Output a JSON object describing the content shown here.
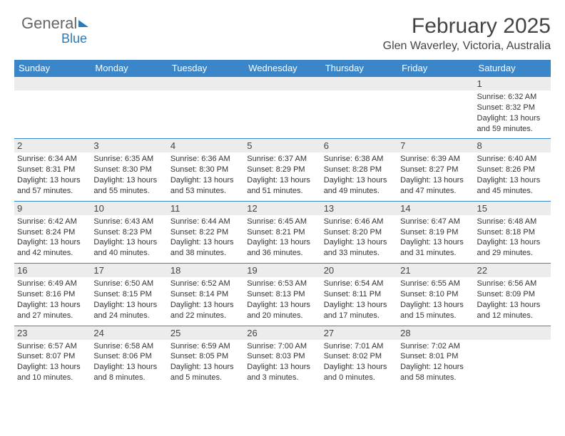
{
  "brand": {
    "part1": "General",
    "part2": "Blue"
  },
  "title": "February 2025",
  "location": "Glen Waverley, Victoria, Australia",
  "colors": {
    "accent": "#3a86c8",
    "headerText": "#ffffff",
    "numBg": "#ececec"
  },
  "dayHeaders": [
    "Sunday",
    "Monday",
    "Tuesday",
    "Wednesday",
    "Thursday",
    "Friday",
    "Saturday"
  ],
  "weeks": [
    [
      null,
      null,
      null,
      null,
      null,
      null,
      {
        "n": "1",
        "sunrise": "Sunrise: 6:32 AM",
        "sunset": "Sunset: 8:32 PM",
        "daylight": "Daylight: 13 hours and 59 minutes."
      }
    ],
    [
      {
        "n": "2",
        "sunrise": "Sunrise: 6:34 AM",
        "sunset": "Sunset: 8:31 PM",
        "daylight": "Daylight: 13 hours and 57 minutes."
      },
      {
        "n": "3",
        "sunrise": "Sunrise: 6:35 AM",
        "sunset": "Sunset: 8:30 PM",
        "daylight": "Daylight: 13 hours and 55 minutes."
      },
      {
        "n": "4",
        "sunrise": "Sunrise: 6:36 AM",
        "sunset": "Sunset: 8:30 PM",
        "daylight": "Daylight: 13 hours and 53 minutes."
      },
      {
        "n": "5",
        "sunrise": "Sunrise: 6:37 AM",
        "sunset": "Sunset: 8:29 PM",
        "daylight": "Daylight: 13 hours and 51 minutes."
      },
      {
        "n": "6",
        "sunrise": "Sunrise: 6:38 AM",
        "sunset": "Sunset: 8:28 PM",
        "daylight": "Daylight: 13 hours and 49 minutes."
      },
      {
        "n": "7",
        "sunrise": "Sunrise: 6:39 AM",
        "sunset": "Sunset: 8:27 PM",
        "daylight": "Daylight: 13 hours and 47 minutes."
      },
      {
        "n": "8",
        "sunrise": "Sunrise: 6:40 AM",
        "sunset": "Sunset: 8:26 PM",
        "daylight": "Daylight: 13 hours and 45 minutes."
      }
    ],
    [
      {
        "n": "9",
        "sunrise": "Sunrise: 6:42 AM",
        "sunset": "Sunset: 8:24 PM",
        "daylight": "Daylight: 13 hours and 42 minutes."
      },
      {
        "n": "10",
        "sunrise": "Sunrise: 6:43 AM",
        "sunset": "Sunset: 8:23 PM",
        "daylight": "Daylight: 13 hours and 40 minutes."
      },
      {
        "n": "11",
        "sunrise": "Sunrise: 6:44 AM",
        "sunset": "Sunset: 8:22 PM",
        "daylight": "Daylight: 13 hours and 38 minutes."
      },
      {
        "n": "12",
        "sunrise": "Sunrise: 6:45 AM",
        "sunset": "Sunset: 8:21 PM",
        "daylight": "Daylight: 13 hours and 36 minutes."
      },
      {
        "n": "13",
        "sunrise": "Sunrise: 6:46 AM",
        "sunset": "Sunset: 8:20 PM",
        "daylight": "Daylight: 13 hours and 33 minutes."
      },
      {
        "n": "14",
        "sunrise": "Sunrise: 6:47 AM",
        "sunset": "Sunset: 8:19 PM",
        "daylight": "Daylight: 13 hours and 31 minutes."
      },
      {
        "n": "15",
        "sunrise": "Sunrise: 6:48 AM",
        "sunset": "Sunset: 8:18 PM",
        "daylight": "Daylight: 13 hours and 29 minutes."
      }
    ],
    [
      {
        "n": "16",
        "sunrise": "Sunrise: 6:49 AM",
        "sunset": "Sunset: 8:16 PM",
        "daylight": "Daylight: 13 hours and 27 minutes."
      },
      {
        "n": "17",
        "sunrise": "Sunrise: 6:50 AM",
        "sunset": "Sunset: 8:15 PM",
        "daylight": "Daylight: 13 hours and 24 minutes."
      },
      {
        "n": "18",
        "sunrise": "Sunrise: 6:52 AM",
        "sunset": "Sunset: 8:14 PM",
        "daylight": "Daylight: 13 hours and 22 minutes."
      },
      {
        "n": "19",
        "sunrise": "Sunrise: 6:53 AM",
        "sunset": "Sunset: 8:13 PM",
        "daylight": "Daylight: 13 hours and 20 minutes."
      },
      {
        "n": "20",
        "sunrise": "Sunrise: 6:54 AM",
        "sunset": "Sunset: 8:11 PM",
        "daylight": "Daylight: 13 hours and 17 minutes."
      },
      {
        "n": "21",
        "sunrise": "Sunrise: 6:55 AM",
        "sunset": "Sunset: 8:10 PM",
        "daylight": "Daylight: 13 hours and 15 minutes."
      },
      {
        "n": "22",
        "sunrise": "Sunrise: 6:56 AM",
        "sunset": "Sunset: 8:09 PM",
        "daylight": "Daylight: 13 hours and 12 minutes."
      }
    ],
    [
      {
        "n": "23",
        "sunrise": "Sunrise: 6:57 AM",
        "sunset": "Sunset: 8:07 PM",
        "daylight": "Daylight: 13 hours and 10 minutes."
      },
      {
        "n": "24",
        "sunrise": "Sunrise: 6:58 AM",
        "sunset": "Sunset: 8:06 PM",
        "daylight": "Daylight: 13 hours and 8 minutes."
      },
      {
        "n": "25",
        "sunrise": "Sunrise: 6:59 AM",
        "sunset": "Sunset: 8:05 PM",
        "daylight": "Daylight: 13 hours and 5 minutes."
      },
      {
        "n": "26",
        "sunrise": "Sunrise: 7:00 AM",
        "sunset": "Sunset: 8:03 PM",
        "daylight": "Daylight: 13 hours and 3 minutes."
      },
      {
        "n": "27",
        "sunrise": "Sunrise: 7:01 AM",
        "sunset": "Sunset: 8:02 PM",
        "daylight": "Daylight: 13 hours and 0 minutes."
      },
      {
        "n": "28",
        "sunrise": "Sunrise: 7:02 AM",
        "sunset": "Sunset: 8:01 PM",
        "daylight": "Daylight: 12 hours and 58 minutes."
      },
      null
    ]
  ]
}
